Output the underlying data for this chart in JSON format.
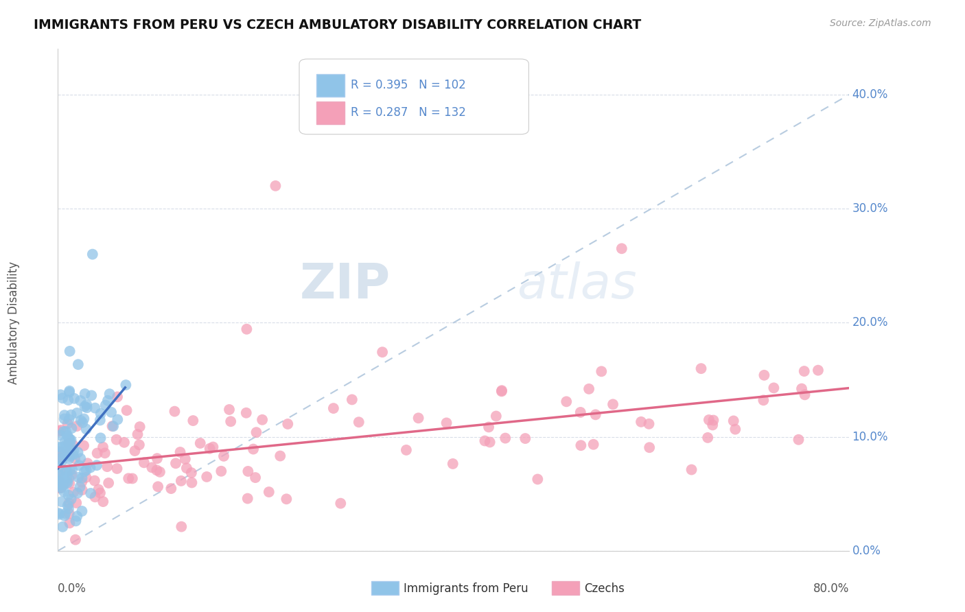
{
  "title": "IMMIGRANTS FROM PERU VS CZECH AMBULATORY DISABILITY CORRELATION CHART",
  "source": "Source: ZipAtlas.com",
  "ylabel": "Ambulatory Disability",
  "legend_label_blue": "Immigrants from Peru",
  "legend_label_pink": "Czechs",
  "R_blue": 0.395,
  "N_blue": 102,
  "R_pink": 0.287,
  "N_pink": 132,
  "blue_color": "#90c4e8",
  "pink_color": "#f4a0b8",
  "blue_line_color": "#4070c0",
  "pink_line_color": "#e06888",
  "background_color": "#ffffff",
  "xlim": [
    0.0,
    0.8
  ],
  "ylim": [
    0.0,
    0.44
  ],
  "yticks": [
    0.0,
    0.1,
    0.2,
    0.3,
    0.4
  ],
  "ytick_labels": [
    "0.0%",
    "10.0%",
    "20.0%",
    "30.0%",
    "40.0%"
  ],
  "watermark_color": "#dde8f0"
}
